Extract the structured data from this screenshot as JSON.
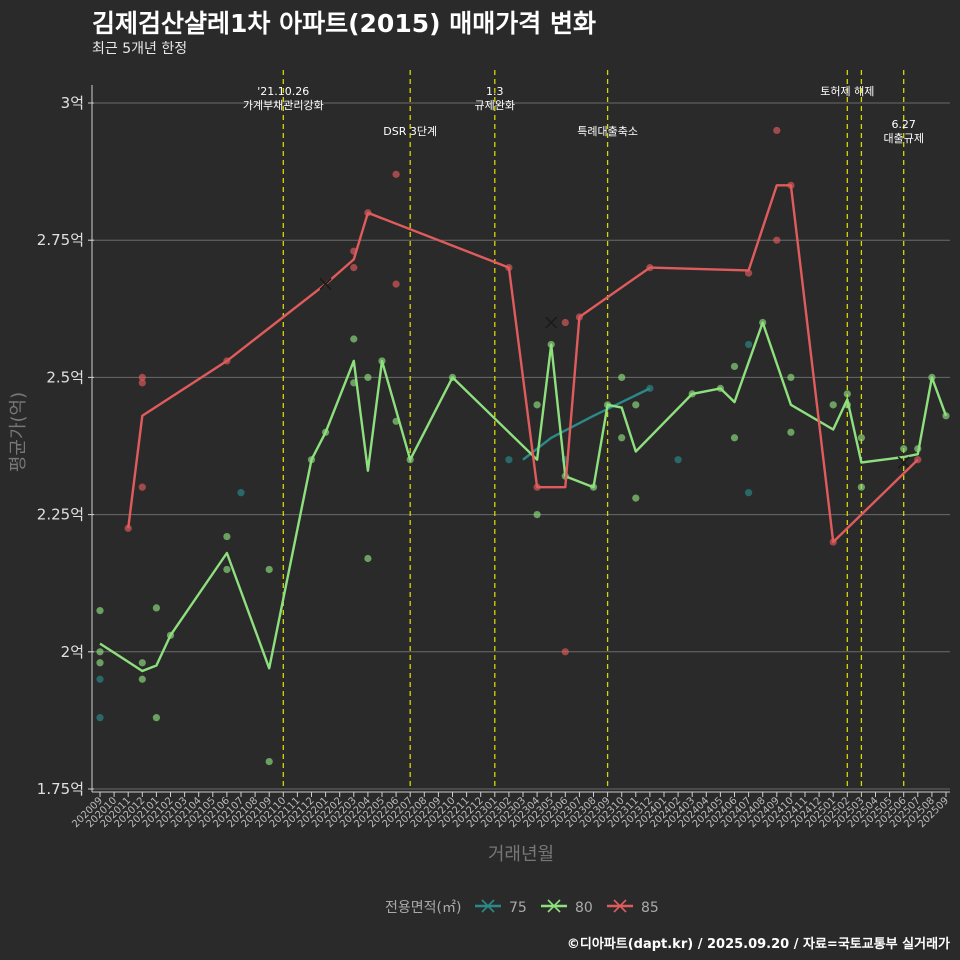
{
  "header": {
    "title": "김제검산샬레1차 아파트(2015) 매매가격 변화",
    "subtitle": "최근 5개년 한정"
  },
  "footer": "©디아파트(dapt.kr) / 2025.09.20 / 자료=국토교통부 실거래가",
  "colors": {
    "background": "#2b2a2b",
    "grid": "#6a6a6a",
    "event_line": "#d6d600",
    "s75": "#2a8a8a",
    "s80": "#8ee07e",
    "s85": "#e05c5c"
  },
  "chart_data": {
    "type": "line",
    "title": "김제검산샬레1차 아파트(2015) 매매가격 변화",
    "subtitle": "최근 5개년 한정",
    "xlabel": "거래년월",
    "ylabel": "평균가(억)",
    "ylim": [
      1.75,
      3.0
    ],
    "yticks": [
      {
        "v": 1.75,
        "label": "1.75억"
      },
      {
        "v": 2.0,
        "label": "2억"
      },
      {
        "v": 2.25,
        "label": "2.25억"
      },
      {
        "v": 2.5,
        "label": "2.5억"
      },
      {
        "v": 2.75,
        "label": "2.75억"
      },
      {
        "v": 3.0,
        "label": "3억"
      }
    ],
    "categories": [
      "202009",
      "202010",
      "202011",
      "202012",
      "202101",
      "202102",
      "202103",
      "202104",
      "202105",
      "202106",
      "202107",
      "202108",
      "202109",
      "202110",
      "202111",
      "202112",
      "202201",
      "202202",
      "202203",
      "202204",
      "202205",
      "202206",
      "202207",
      "202208",
      "202209",
      "202210",
      "202211",
      "202212",
      "202301",
      "202302",
      "202303",
      "202304",
      "202305",
      "202306",
      "202307",
      "202308",
      "202309",
      "202310",
      "202311",
      "202312",
      "202401",
      "202402",
      "202403",
      "202404",
      "202405",
      "202406",
      "202407",
      "202408",
      "202409",
      "202410",
      "202411",
      "202412",
      "202501",
      "202502",
      "202503",
      "202504",
      "202505",
      "202506",
      "202507",
      "202508",
      "202509"
    ],
    "events": [
      {
        "x": 13,
        "lines": [
          "'21.10.26",
          "가계부채관리강화"
        ],
        "row": 0
      },
      {
        "x": 22,
        "lines": [
          "DSR 3단계"
        ],
        "row": 1
      },
      {
        "x": 28,
        "lines": [
          "1.3",
          "규제완화"
        ],
        "row": 0
      },
      {
        "x": 36,
        "lines": [
          "특례대출축소"
        ],
        "row": 1
      },
      {
        "x": 53,
        "lines": [
          "토허제 해제"
        ],
        "row": 0
      },
      {
        "x": 54,
        "lines": [],
        "row": 0
      },
      {
        "x": 57,
        "lines": [
          "6.27",
          "대출규제"
        ],
        "row": 2
      }
    ],
    "legend": {
      "title": "전용면적(㎡)",
      "position": "bottom",
      "items": [
        {
          "name": "75",
          "color": "#2a8a8a"
        },
        {
          "name": "80",
          "color": "#8ee07e"
        },
        {
          "name": "85",
          "color": "#e05c5c"
        }
      ]
    },
    "series": [
      {
        "name": "75",
        "color": "#2a8a8a",
        "line": [
          [
            30,
            2.35
          ],
          [
            32,
            2.39
          ],
          [
            35,
            2.43
          ],
          [
            39,
            2.48
          ]
        ],
        "points": [
          [
            0,
            1.95
          ],
          [
            0,
            1.88
          ],
          [
            10,
            2.29
          ],
          [
            29,
            2.35
          ],
          [
            33,
            2.35
          ],
          [
            39,
            2.48
          ],
          [
            41,
            2.35
          ],
          [
            46,
            2.29
          ],
          [
            46,
            2.56
          ]
        ],
        "markers": []
      },
      {
        "name": "80",
        "color": "#8ee07e",
        "line": [
          [
            0,
            2.015
          ],
          [
            3,
            1.965
          ],
          [
            4,
            1.975
          ],
          [
            5,
            2.03
          ],
          [
            9,
            2.18
          ],
          [
            12,
            1.97
          ],
          [
            15,
            2.35
          ],
          [
            16,
            2.4
          ],
          [
            18,
            2.53
          ],
          [
            19,
            2.33
          ],
          [
            20,
            2.53
          ],
          [
            22,
            2.35
          ],
          [
            25,
            2.5
          ],
          [
            31,
            2.35
          ],
          [
            32,
            2.56
          ],
          [
            33,
            2.32
          ],
          [
            35,
            2.3
          ],
          [
            36,
            2.45
          ],
          [
            37,
            2.445
          ],
          [
            38,
            2.365
          ],
          [
            42,
            2.47
          ],
          [
            44,
            2.48
          ],
          [
            45,
            2.455
          ],
          [
            47,
            2.6
          ],
          [
            49,
            2.45
          ],
          [
            52,
            2.405
          ],
          [
            53,
            2.46
          ],
          [
            54,
            2.345
          ],
          [
            57,
            2.355
          ],
          [
            58,
            2.36
          ],
          [
            59,
            2.5
          ],
          [
            60,
            2.43
          ]
        ],
        "points": [
          [
            0,
            2.075
          ],
          [
            0,
            2.0
          ],
          [
            0,
            1.98
          ],
          [
            3,
            1.98
          ],
          [
            3,
            1.95
          ],
          [
            4,
            2.08
          ],
          [
            4,
            1.88
          ],
          [
            5,
            2.03
          ],
          [
            9,
            2.21
          ],
          [
            9,
            2.15
          ],
          [
            12,
            2.15
          ],
          [
            12,
            1.8
          ],
          [
            15,
            2.35
          ],
          [
            16,
            2.4
          ],
          [
            18,
            2.57
          ],
          [
            18,
            2.49
          ],
          [
            19,
            2.5
          ],
          [
            19,
            2.17
          ],
          [
            20,
            2.53
          ],
          [
            21,
            2.42
          ],
          [
            22,
            2.35
          ],
          [
            25,
            2.5
          ],
          [
            31,
            2.45
          ],
          [
            31,
            2.25
          ],
          [
            32,
            2.56
          ],
          [
            33,
            2.32
          ],
          [
            35,
            2.3
          ],
          [
            36,
            2.45
          ],
          [
            37,
            2.5
          ],
          [
            37,
            2.39
          ],
          [
            38,
            2.45
          ],
          [
            38,
            2.28
          ],
          [
            42,
            2.47
          ],
          [
            44,
            2.48
          ],
          [
            45,
            2.52
          ],
          [
            45,
            2.39
          ],
          [
            47,
            2.6
          ],
          [
            49,
            2.5
          ],
          [
            49,
            2.4
          ],
          [
            52,
            2.45
          ],
          [
            53,
            2.47
          ],
          [
            53,
            2.45
          ],
          [
            54,
            2.39
          ],
          [
            54,
            2.3
          ],
          [
            57,
            2.37
          ],
          [
            58,
            2.37
          ],
          [
            59,
            2.5
          ],
          [
            60,
            2.43
          ]
        ],
        "markers": [
          [
            57,
            2.345
          ]
        ]
      },
      {
        "name": "85",
        "color": "#e05c5c",
        "line": [
          [
            2,
            2.225
          ],
          [
            3,
            2.43
          ],
          [
            9,
            2.53
          ],
          [
            16,
            2.67
          ],
          [
            18,
            2.715
          ],
          [
            19,
            2.8
          ],
          [
            29,
            2.7
          ],
          [
            31,
            2.3
          ],
          [
            33,
            2.3
          ],
          [
            34,
            2.61
          ],
          [
            39,
            2.7
          ],
          [
            46,
            2.695
          ],
          [
            48,
            2.85
          ],
          [
            49,
            2.85
          ],
          [
            52,
            2.2
          ],
          [
            58,
            2.35
          ]
        ],
        "points": [
          [
            2,
            2.225
          ],
          [
            3,
            2.5
          ],
          [
            3,
            2.49
          ],
          [
            3,
            2.3
          ],
          [
            9,
            2.53
          ],
          [
            18,
            2.73
          ],
          [
            18,
            2.7
          ],
          [
            19,
            2.8
          ],
          [
            21,
            2.87
          ],
          [
            21,
            2.67
          ],
          [
            29,
            2.7
          ],
          [
            31,
            2.3
          ],
          [
            33,
            2.6
          ],
          [
            33,
            2.0
          ],
          [
            34,
            2.61
          ],
          [
            39,
            2.7
          ],
          [
            46,
            2.69
          ],
          [
            48,
            2.95
          ],
          [
            48,
            2.75
          ],
          [
            49,
            2.85
          ],
          [
            52,
            2.2
          ],
          [
            58,
            2.35
          ]
        ],
        "markers": [
          [
            16,
            2.67
          ],
          [
            32,
            2.6
          ]
        ]
      }
    ]
  }
}
